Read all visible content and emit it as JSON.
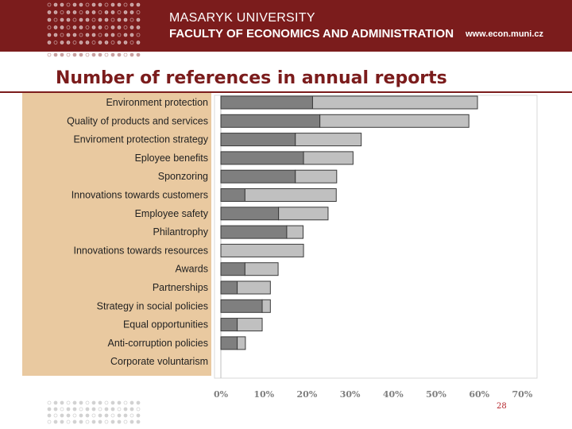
{
  "header": {
    "university": "MASARYK UNIVERSITY",
    "faculty": "FACULTY OF ECONOMICS AND ADMINISTRATION",
    "website": "www.econ.muni.cz",
    "background_color": "#7b1c1c",
    "text_color": "#ffffff"
  },
  "slide": {
    "title": "Number of references in annual reports",
    "title_color": "#7b1c1c",
    "page_number": "28",
    "page_number_color": "#b5272d"
  },
  "chart_data": {
    "type": "bar",
    "orientation": "horizontal",
    "stacked": true,
    "categories": [
      "Environment protection",
      "Quality of products and services",
      "Enviroment protection strategy",
      "Eployee benefits",
      "Sponzoring",
      "Innovations towards customers",
      "Employee safety",
      "Philantrophy",
      "Innovations towards resources",
      "Awards",
      "Partnerships",
      "Strategy in social policies",
      "Equal opportunities",
      "Anti-corruption policies",
      "Corporate voluntarism"
    ],
    "series": [
      {
        "color": "#7f7f7f",
        "values": [
          21.3,
          23.0,
          17.3,
          19.2,
          17.3,
          5.6,
          13.4,
          15.3,
          0,
          5.6,
          3.8,
          9.6,
          3.8,
          3.8,
          0
        ]
      },
      {
        "color": "#c0c0c0",
        "values": [
          38.3,
          34.6,
          15.3,
          11.5,
          9.6,
          21.2,
          11.5,
          3.8,
          19.2,
          7.7,
          7.7,
          1.9,
          5.8,
          1.9,
          0
        ]
      }
    ],
    "xlim": [
      0,
      70
    ],
    "xticks": [
      "0%",
      "10%",
      "20%",
      "30%",
      "40%",
      "50%",
      "60%",
      "70%"
    ],
    "label_panel_color": "#e9c9a0",
    "plot_background": "#ffffff",
    "tick_label_color": "#7f7f7f",
    "grid": false
  }
}
